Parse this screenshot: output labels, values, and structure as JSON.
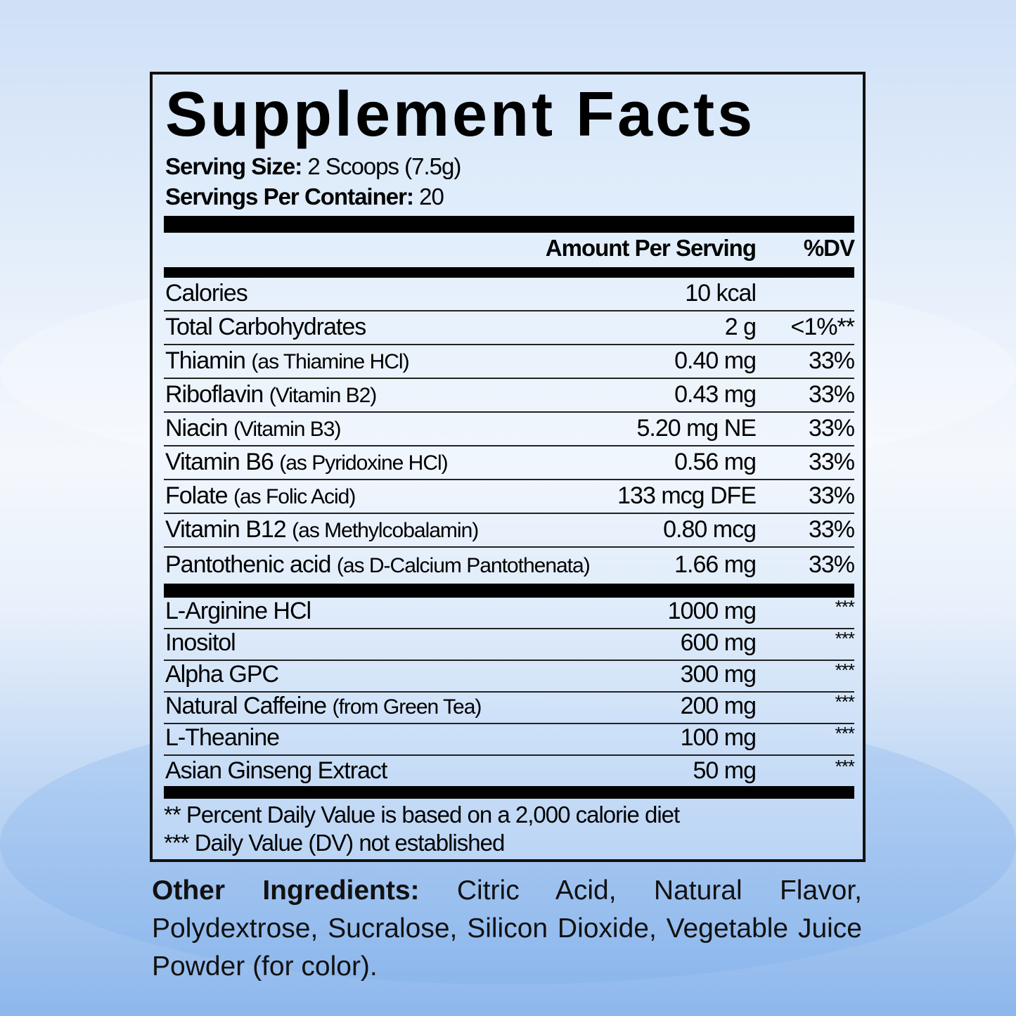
{
  "title": "Supplement Facts",
  "serving_size_label": "Serving Size:",
  "serving_size_value": "2 Scoops (7.5g)",
  "servings_label": "Servings Per Container:",
  "servings_value": "20",
  "header": {
    "amount": "Amount Per Serving",
    "dv": "%DV"
  },
  "section1": [
    {
      "name": "Calories",
      "note": "",
      "amount": "10 kcal",
      "dv": ""
    },
    {
      "name": "Total Carbohydrates",
      "note": "",
      "amount": "2 g",
      "dv": "<1%**"
    },
    {
      "name": "Thiamin",
      "note": "(as Thiamine HCl)",
      "amount": "0.40 mg",
      "dv": "33%"
    },
    {
      "name": "Riboflavin",
      "note": "(Vitamin B2)",
      "amount": "0.43 mg",
      "dv": "33%"
    },
    {
      "name": "Niacin",
      "note": "(Vitamin B3)",
      "amount": "5.20 mg NE",
      "dv": "33%"
    },
    {
      "name": "Vitamin B6",
      "note": "(as Pyridoxine HCl)",
      "amount": "0.56 mg",
      "dv": "33%"
    },
    {
      "name": "Folate",
      "note": "(as Folic Acid)",
      "amount": "133 mcg DFE",
      "dv": "33%"
    },
    {
      "name": "Vitamin B12",
      "note": "(as Methylcobalamin)",
      "amount": "0.80 mcg",
      "dv": "33%"
    },
    {
      "name": "Pantothenic acid",
      "note": "(as D-Calcium Pantothenata)",
      "amount": "1.66 mg",
      "dv": "33%"
    }
  ],
  "section2": [
    {
      "name": "L-Arginine HCl",
      "note": "",
      "amount": "1000 mg",
      "dv": "***"
    },
    {
      "name": "Inositol",
      "note": "",
      "amount": "600 mg",
      "dv": "***"
    },
    {
      "name": "Alpha GPC",
      "note": "",
      "amount": "300 mg",
      "dv": "***"
    },
    {
      "name": "Natural Caffeine",
      "note": "(from Green Tea)",
      "amount": "200 mg",
      "dv": "***"
    },
    {
      "name": "L-Theanine",
      "note": "",
      "amount": "100 mg",
      "dv": "***"
    },
    {
      "name": "Asian Ginseng Extract",
      "note": "",
      "amount": "50 mg",
      "dv": "***"
    }
  ],
  "footnotes": [
    "** Percent Daily Value is based on a 2,000 calorie diet",
    "*** Daily Value (DV) not established"
  ],
  "other_ingredients": {
    "label": "Other Ingredients:",
    "text": "Citric Acid, Natural Flavor, Polydextrose, Sucralose, Silicon Dioxide, Vegetable Juice Powder (for color)."
  }
}
